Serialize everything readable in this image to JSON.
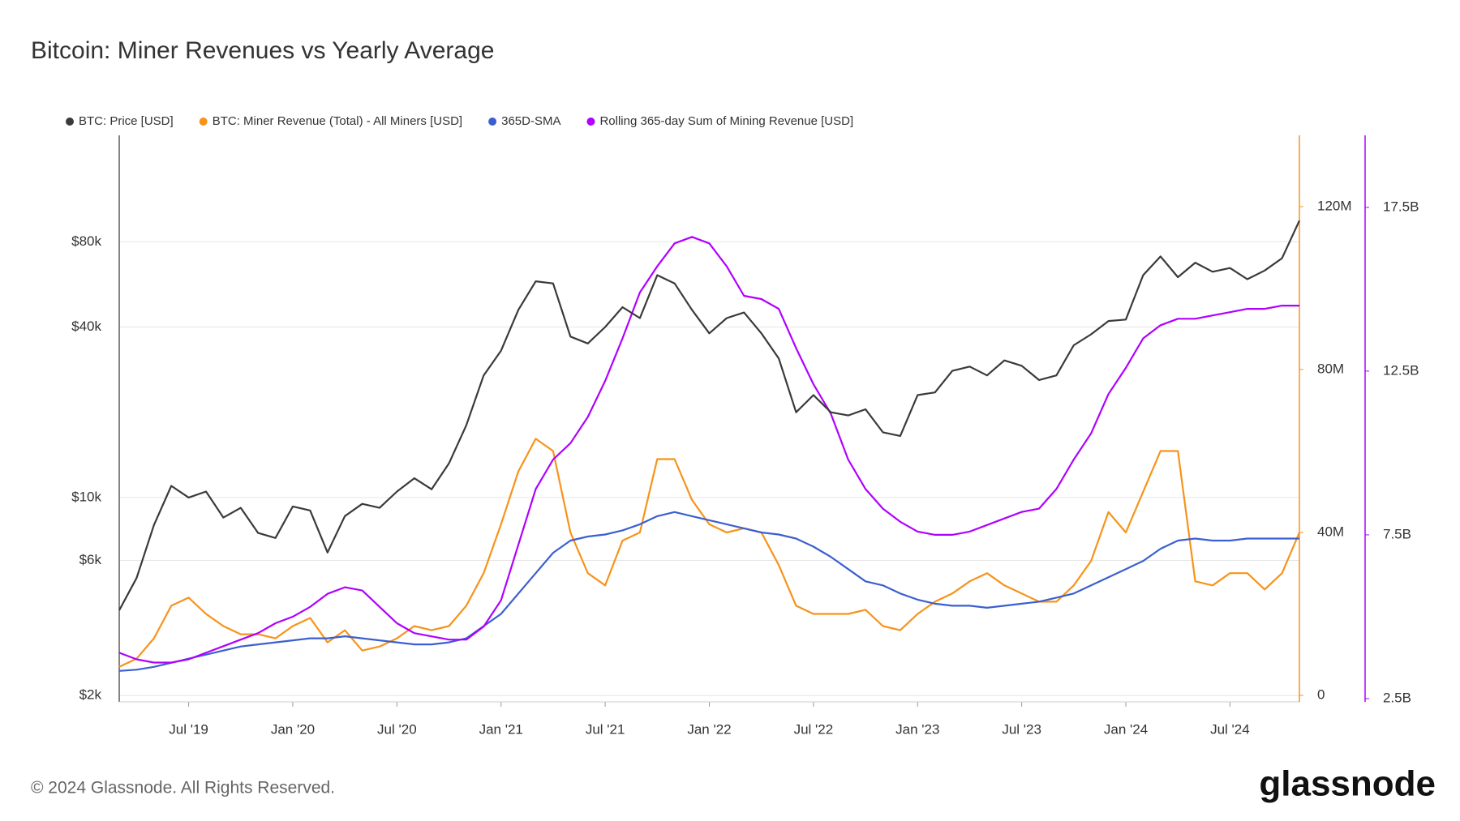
{
  "chart_data": {
    "type": "line",
    "title": "Bitcoin: Miner Revenues vs Yearly Average",
    "copyright": "© 2024 Glassnode. All Rights Reserved.",
    "brand": "glassnode",
    "grid": true,
    "legend": "top",
    "x": [
      "2019-03",
      "2019-04",
      "2019-05",
      "2019-06",
      "2019-07",
      "2019-08",
      "2019-09",
      "2019-10",
      "2019-11",
      "2019-12",
      "2020-01",
      "2020-02",
      "2020-03",
      "2020-04",
      "2020-05",
      "2020-06",
      "2020-07",
      "2020-08",
      "2020-09",
      "2020-10",
      "2020-11",
      "2020-12",
      "2021-01",
      "2021-02",
      "2021-03",
      "2021-04",
      "2021-05",
      "2021-06",
      "2021-07",
      "2021-08",
      "2021-09",
      "2021-10",
      "2021-11",
      "2021-12",
      "2022-01",
      "2022-02",
      "2022-03",
      "2022-04",
      "2022-05",
      "2022-06",
      "2022-07",
      "2022-08",
      "2022-09",
      "2022-10",
      "2022-11",
      "2022-12",
      "2023-01",
      "2023-02",
      "2023-03",
      "2023-04",
      "2023-05",
      "2023-06",
      "2023-07",
      "2023-08",
      "2023-09",
      "2023-10",
      "2023-11",
      "2023-12",
      "2024-01",
      "2024-02",
      "2024-03",
      "2024-04",
      "2024-05",
      "2024-06",
      "2024-07",
      "2024-08",
      "2024-09",
      "2024-10",
      "2024-11"
    ],
    "xlim": [
      "2019-03",
      "2024-11"
    ],
    "xticks": [
      {
        "value": "2019-07",
        "label": "Jul '19"
      },
      {
        "value": "2020-01",
        "label": "Jan '20"
      },
      {
        "value": "2020-07",
        "label": "Jul '20"
      },
      {
        "value": "2021-01",
        "label": "Jan '21"
      },
      {
        "value": "2021-07",
        "label": "Jul '21"
      },
      {
        "value": "2022-01",
        "label": "Jan '22"
      },
      {
        "value": "2022-07",
        "label": "Jul '22"
      },
      {
        "value": "2023-01",
        "label": "Jan '23"
      },
      {
        "value": "2023-07",
        "label": "Jul '23"
      },
      {
        "value": "2024-01",
        "label": "Jan '24"
      },
      {
        "value": "2024-07",
        "label": "Jul '24"
      }
    ],
    "ylog": true,
    "ylim": [
      1900,
      190000
    ],
    "yticks": [
      {
        "value": 2000,
        "label": "$2k"
      },
      {
        "value": 6000,
        "label": "$6k"
      },
      {
        "value": 10000,
        "label": "$10k"
      },
      {
        "value": 40000,
        "label": "$40k"
      },
      {
        "value": 80000,
        "label": "$80k"
      }
    ],
    "y2lim": [
      -1600000,
      137500000
    ],
    "y2ticks": [
      {
        "value": 0,
        "label": "0"
      },
      {
        "value": 40000000,
        "label": "40M"
      },
      {
        "value": 80000000,
        "label": "80M"
      },
      {
        "value": 120000000,
        "label": "120M"
      }
    ],
    "y3lim": [
      2400000000,
      19700000000
    ],
    "y3ticks": [
      {
        "value": 2500000000,
        "label": "2.5B"
      },
      {
        "value": 7500000000,
        "label": "7.5B"
      },
      {
        "value": 12500000000,
        "label": "12.5B"
      },
      {
        "value": 17500000000,
        "label": "17.5B"
      }
    ],
    "series": [
      {
        "name": "BTC: Price [USD]",
        "color": "#3a3a3a",
        "axis": "y",
        "values": [
          4000,
          5200,
          8000,
          11000,
          10000,
          10500,
          8500,
          9200,
          7500,
          7200,
          9300,
          9000,
          6400,
          8600,
          9500,
          9200,
          10500,
          11700,
          10700,
          13200,
          18000,
          27000,
          33000,
          46000,
          58000,
          57000,
          37000,
          35000,
          40000,
          47000,
          43000,
          61000,
          57000,
          46000,
          38000,
          43000,
          45000,
          38000,
          31000,
          20000,
          23000,
          20000,
          19500,
          20500,
          17000,
          16500,
          23000,
          23500,
          28000,
          29000,
          27000,
          30500,
          29200,
          26000,
          27000,
          34500,
          37700,
          42000,
          42500,
          61000,
          71000,
          60000,
          67500,
          62700,
          64600,
          59000,
          63300,
          70000,
          95000
        ]
      },
      {
        "name": "BTC: Miner Revenue (Total) - All Miners [USD]",
        "color": "#f7931a",
        "axis": "y2",
        "values": [
          7000000,
          9000000,
          14000000,
          22000000,
          24000000,
          20000000,
          17000000,
          15000000,
          15000000,
          14000000,
          17000000,
          19000000,
          13000000,
          16000000,
          11000000,
          12000000,
          14000000,
          17000000,
          16000000,
          17000000,
          22000000,
          30000000,
          42000000,
          55000000,
          63000000,
          60000000,
          40000000,
          30000000,
          27000000,
          38000000,
          40000000,
          58000000,
          58000000,
          48000000,
          42000000,
          40000000,
          41000000,
          40000000,
          32000000,
          22000000,
          20000000,
          20000000,
          20000000,
          21000000,
          17000000,
          16000000,
          20000000,
          23000000,
          25000000,
          28000000,
          30000000,
          27000000,
          25000000,
          23000000,
          23000000,
          27000000,
          33000000,
          45000000,
          40000000,
          50000000,
          60000000,
          60000000,
          28000000,
          27000000,
          30000000,
          30000000,
          26000000,
          30000000,
          40000000
        ]
      },
      {
        "name": "365D-SMA",
        "color": "#3b5fd0",
        "axis": "y2",
        "values": [
          6000000,
          6300000,
          7000000,
          8000000,
          9000000,
          10000000,
          11000000,
          12000000,
          12500000,
          13000000,
          13500000,
          14000000,
          14000000,
          14500000,
          14000000,
          13500000,
          13000000,
          12500000,
          12500000,
          13000000,
          14000000,
          17000000,
          20000000,
          25000000,
          30000000,
          35000000,
          38000000,
          39000000,
          39500000,
          40500000,
          42000000,
          44000000,
          45000000,
          44000000,
          43000000,
          42000000,
          41000000,
          40000000,
          39500000,
          38500000,
          36500000,
          34000000,
          31000000,
          28000000,
          27000000,
          25000000,
          23500000,
          22500000,
          22000000,
          22000000,
          21500000,
          22000000,
          22500000,
          23000000,
          24000000,
          25000000,
          27000000,
          29000000,
          31000000,
          33000000,
          36000000,
          38000000,
          38500000,
          38000000,
          38000000,
          38500000,
          38500000,
          38500000,
          38500000
        ]
      },
      {
        "name": "Rolling 365-day Sum of Mining Revenue [USD]",
        "color": "#b000ff",
        "axis": "y3",
        "values": [
          3900000000,
          3700000000,
          3600000000,
          3600000000,
          3700000000,
          3900000000,
          4100000000,
          4300000000,
          4500000000,
          4800000000,
          5000000000,
          5300000000,
          5700000000,
          5900000000,
          5800000000,
          5300000000,
          4800000000,
          4500000000,
          4400000000,
          4300000000,
          4300000000,
          4700000000,
          5500000000,
          7200000000,
          8900000000,
          9800000000,
          10300000000,
          11100000000,
          12200000000,
          13500000000,
          14900000000,
          15700000000,
          16400000000,
          16600000000,
          16400000000,
          15700000000,
          14800000000,
          14700000000,
          14400000000,
          13200000000,
          12100000000,
          11200000000,
          9800000000,
          8900000000,
          8300000000,
          7900000000,
          7600000000,
          7500000000,
          7500000000,
          7600000000,
          7800000000,
          8000000000,
          8200000000,
          8300000000,
          8900000000,
          9800000000,
          10600000000,
          11800000000,
          12600000000,
          13500000000,
          13900000000,
          14100000000,
          14100000000,
          14200000000,
          14300000000,
          14400000000,
          14400000000,
          14500000000,
          14500000000
        ]
      }
    ]
  }
}
